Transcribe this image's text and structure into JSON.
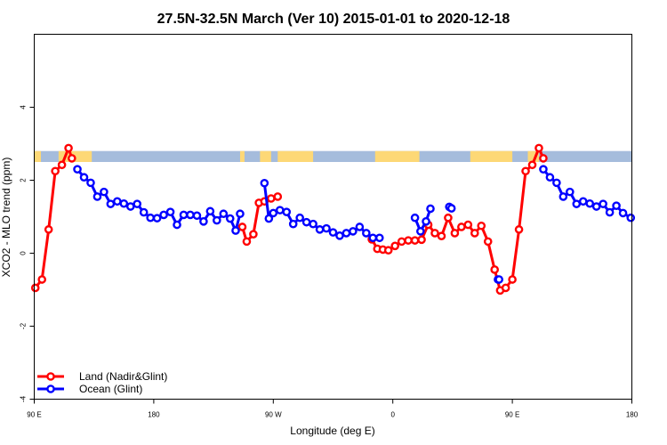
{
  "chart_data": {
    "type": "line",
    "title": "27.5N-32.5N March (Ver 10)   2015-01-01 to 2020-12-18",
    "xlabel": "Longitude (deg E)",
    "ylabel": "XCO2 - MLO trend (ppm)",
    "xlim": [
      -90,
      180
    ],
    "ylim": [
      -4,
      6
    ],
    "x_ticks": [
      {
        "value": -90,
        "label": "90 E"
      },
      {
        "value": -36,
        "label": "180"
      },
      {
        "value": 18,
        "label": "90 W"
      },
      {
        "value": 72,
        "label": "0"
      },
      {
        "value": 126,
        "label": "90 E"
      },
      {
        "value": 180,
        "label": "180"
      }
    ],
    "y_ticks": [
      -4,
      -2,
      0,
      2,
      4
    ],
    "legend_position": "bottom-left",
    "land_ocean_band": {
      "y_range": [
        2.5,
        2.8
      ],
      "land_color": "#fdd876",
      "ocean_color": "#a5bcdc",
      "land_segments": [
        [
          -90,
          -87
        ],
        [
          -79,
          -64
        ],
        [
          3,
          5
        ],
        [
          12,
          17
        ],
        [
          20,
          36
        ],
        [
          64,
          84
        ],
        [
          107,
          126
        ],
        [
          133,
          138
        ]
      ]
    },
    "series": [
      {
        "name": "Land (Nadir&Glint)",
        "color": "#ff0000",
        "segments": [
          [
            [
              -89.5,
              -0.95
            ],
            [
              -86.5,
              -0.72
            ],
            [
              -83.5,
              0.65
            ],
            [
              -80.5,
              2.25
            ],
            [
              -77.5,
              2.42
            ],
            [
              -74.5,
              2.88
            ],
            [
              -73,
              2.6
            ]
          ],
          [
            [
              4,
              0.72
            ],
            [
              6,
              0.32
            ],
            [
              9,
              0.52
            ],
            [
              11.5,
              1.38
            ],
            [
              14,
              1.42
            ],
            [
              17,
              1.5
            ],
            [
              20,
              1.55
            ]
          ],
          [
            [
              62.5,
              0.38
            ],
            [
              65,
              0.12
            ],
            [
              67.5,
              0.1
            ],
            [
              70,
              0.08
            ],
            [
              73,
              0.2
            ],
            [
              76,
              0.32
            ],
            [
              79,
              0.35
            ],
            [
              82,
              0.35
            ],
            [
              85,
              0.37
            ],
            [
              88,
              0.78
            ],
            [
              91,
              0.55
            ],
            [
              94,
              0.47
            ],
            [
              97,
              0.97
            ],
            [
              100,
              0.55
            ],
            [
              103,
              0.72
            ],
            [
              106,
              0.78
            ],
            [
              109,
              0.55
            ],
            [
              112,
              0.75
            ],
            [
              115,
              0.32
            ],
            [
              118,
              -0.45
            ],
            [
              120.5,
              -1.02
            ],
            [
              123,
              -0.95
            ],
            [
              126,
              -0.72
            ],
            [
              129,
              0.65
            ],
            [
              132,
              2.25
            ],
            [
              135,
              2.42
            ],
            [
              138,
              2.88
            ],
            [
              140,
              2.6
            ]
          ]
        ]
      },
      {
        "name": "Ocean (Glint)",
        "color": "#0000ff",
        "segments": [
          [
            [
              -70.5,
              2.3
            ],
            [
              -67.5,
              2.08
            ],
            [
              -64.5,
              1.93
            ],
            [
              -61.5,
              1.55
            ],
            [
              -58.5,
              1.68
            ],
            [
              -55.5,
              1.35
            ],
            [
              -52.5,
              1.42
            ],
            [
              -49.5,
              1.36
            ],
            [
              -46.5,
              1.28
            ],
            [
              -43.5,
              1.35
            ],
            [
              -40.5,
              1.12
            ],
            [
              -37.5,
              0.97
            ],
            [
              -34.5,
              0.96
            ],
            [
              -31.5,
              1.05
            ],
            [
              -28.5,
              1.13
            ],
            [
              -25.5,
              0.78
            ],
            [
              -22.5,
              1.05
            ],
            [
              -19.5,
              1.05
            ],
            [
              -16.5,
              1.03
            ],
            [
              -13.5,
              0.87
            ],
            [
              -10.5,
              1.15
            ],
            [
              -7.5,
              0.9
            ],
            [
              -4.5,
              1.08
            ],
            [
              -1.5,
              0.95
            ],
            [
              1,
              0.62
            ],
            [
              3,
              1.08
            ]
          ],
          [
            [
              14,
              1.92
            ],
            [
              16,
              0.95
            ],
            [
              18,
              1.1
            ],
            [
              21,
              1.18
            ],
            [
              24,
              1.13
            ],
            [
              27,
              0.8
            ],
            [
              30,
              0.97
            ],
            [
              33,
              0.85
            ],
            [
              36,
              0.8
            ],
            [
              39,
              0.65
            ],
            [
              42,
              0.68
            ],
            [
              45,
              0.57
            ],
            [
              48,
              0.48
            ],
            [
              51,
              0.55
            ],
            [
              54,
              0.6
            ],
            [
              57,
              0.72
            ],
            [
              60,
              0.55
            ],
            [
              63,
              0.42
            ],
            [
              66,
              0.42
            ]
          ],
          [
            [
              82,
              0.97
            ],
            [
              84.5,
              0.6
            ],
            [
              87,
              0.87
            ],
            [
              89,
              1.22
            ]
          ],
          [
            [
              97.5,
              1.27
            ],
            [
              98.5,
              1.23
            ]
          ],
          [
            [
              119.5,
              -0.72
            ],
            [
              120,
              -0.72
            ]
          ],
          [
            [
              140,
              2.3
            ],
            [
              143,
              2.08
            ],
            [
              146,
              1.93
            ],
            [
              149,
              1.55
            ],
            [
              152,
              1.68
            ],
            [
              155,
              1.35
            ],
            [
              158,
              1.42
            ],
            [
              161,
              1.36
            ],
            [
              164,
              1.28
            ],
            [
              167,
              1.35
            ],
            [
              170,
              1.12
            ],
            [
              173,
              1.3
            ],
            [
              176,
              1.1
            ],
            [
              179.5,
              0.97
            ]
          ]
        ]
      }
    ]
  }
}
